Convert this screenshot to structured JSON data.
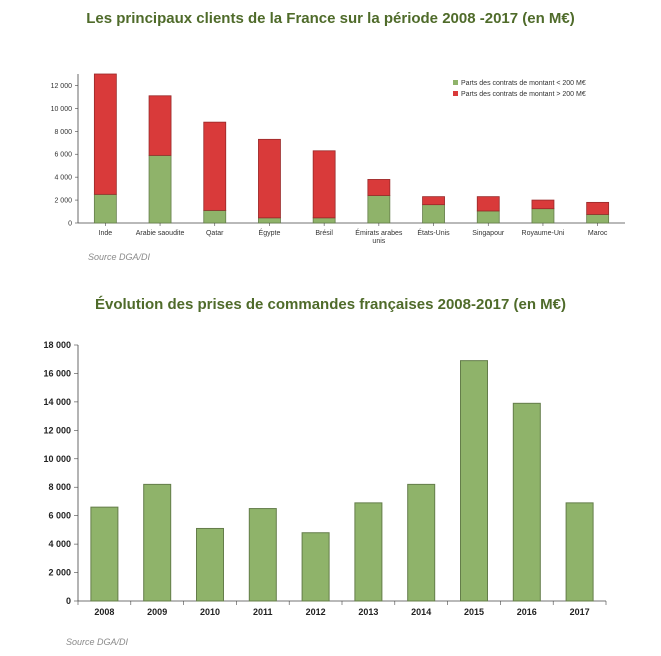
{
  "source_label": "Source DGA/DI",
  "chart_data": [
    {
      "type": "bar",
      "stacked": true,
      "title": "Les principaux clients de la France sur la période 2008 -2017 (en M€)",
      "categories": [
        "Inde",
        "Arabie saoudite",
        "Qatar",
        "Égypte",
        "Brésil",
        "Émirats arabes unis",
        "États-Unis",
        "Singapour",
        "Royaume-Uni",
        "Maroc"
      ],
      "series": [
        {
          "name": "Parts des  contrats de montant < 200 M€",
          "color": "#8fb36a",
          "values": [
            2500,
            5900,
            1100,
            450,
            450,
            2400,
            1600,
            1050,
            1250,
            750
          ]
        },
        {
          "name": "Parts des  contrats de montant > 200 M€",
          "color": "#d93a3a",
          "values": [
            10500,
            5200,
            7700,
            6850,
            5850,
            1400,
            700,
            1250,
            750,
            1050
          ]
        }
      ],
      "y_ticks": [
        "0",
        "2 000",
        "4 000",
        "6 000",
        "8 000",
        "10 000",
        "12 000"
      ],
      "ylim": [
        0,
        13000
      ],
      "legend": "top-right",
      "grid": false
    },
    {
      "type": "bar",
      "title": "Évolution des prises de commandes françaises 2008-2017 (en M€)",
      "categories": [
        "2008",
        "2009",
        "2010",
        "2011",
        "2012",
        "2013",
        "2014",
        "2015",
        "2016",
        "2017"
      ],
      "values": [
        6600,
        8200,
        5100,
        6500,
        4800,
        6900,
        8200,
        16900,
        13900,
        6900
      ],
      "color": "#8fb36a",
      "y_ticks": [
        "0",
        "2 000",
        "4 000",
        "6 000",
        "8 000",
        "10 000",
        "12 000",
        "14 000",
        "16 000",
        "18 000"
      ],
      "ylim": [
        0,
        18000
      ],
      "grid": false
    }
  ]
}
